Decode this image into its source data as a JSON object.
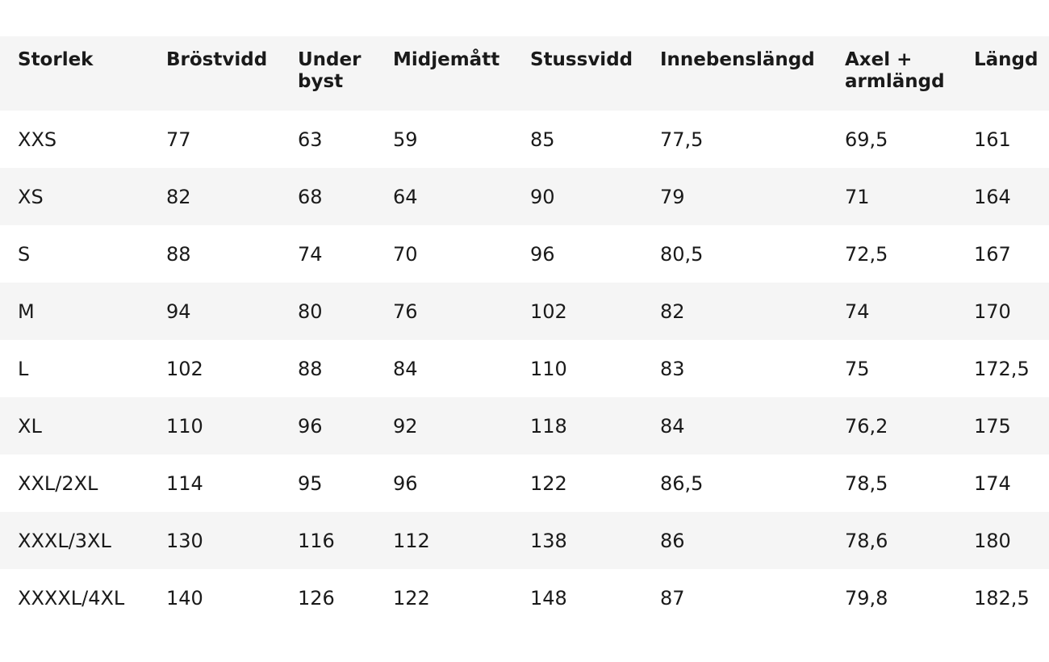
{
  "table": {
    "header": [
      "Storlek",
      "Bröstvidd",
      "Under byst",
      "Midjemått",
      "Stussvidd",
      "Innebenslängd",
      "Axel + armlängd",
      "Längd"
    ],
    "rows": [
      [
        "XXS",
        "77",
        "63",
        "59",
        "85",
        "77,5",
        "69,5",
        "161"
      ],
      [
        "XS",
        "82",
        "68",
        "64",
        "90",
        "79",
        "71",
        "164"
      ],
      [
        "S",
        "88",
        "74",
        "70",
        "96",
        "80,5",
        "72,5",
        "167"
      ],
      [
        "M",
        "94",
        "80",
        "76",
        "102",
        "82",
        "74",
        "170"
      ],
      [
        "L",
        "102",
        "88",
        "84",
        "110",
        "83",
        "75",
        "172,5"
      ],
      [
        "XL",
        "110",
        "96",
        "92",
        "118",
        "84",
        "76,2",
        "175"
      ],
      [
        "XXL/2XL",
        "114",
        "95",
        "96",
        "122",
        "86,5",
        "78,5",
        "174"
      ],
      [
        "XXXL/3XL",
        "130",
        "116",
        "112",
        "138",
        "86",
        "78,6",
        "180"
      ],
      [
        "XXXXL/4XL",
        "140",
        "126",
        "122",
        "148",
        "87",
        "79,8",
        "182,5"
      ]
    ]
  }
}
